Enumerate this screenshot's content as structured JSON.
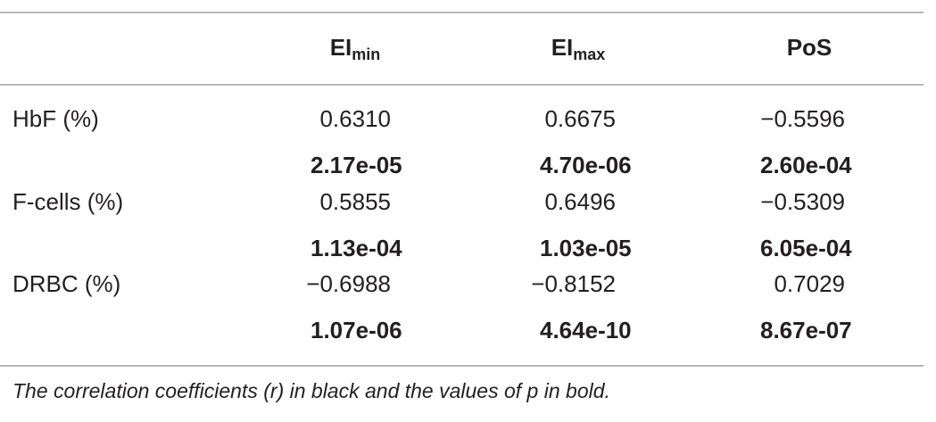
{
  "table": {
    "columns": [
      {
        "main": "EI",
        "sub": "min"
      },
      {
        "main": "EI",
        "sub": "max"
      },
      {
        "main": "PoS"
      }
    ],
    "rows": [
      {
        "label": "HbF (%)",
        "r": [
          "0.6310",
          "0.6675",
          "−0.5596"
        ],
        "p": [
          "2.17e-05",
          "4.70e-06",
          "2.60e-04"
        ]
      },
      {
        "label": "F-cells (%)",
        "r": [
          "0.5855",
          "0.6496",
          "−0.5309"
        ],
        "p": [
          "1.13e-04",
          "1.03e-05",
          "6.05e-04"
        ]
      },
      {
        "label": "DRBC (%)",
        "r": [
          "−0.6988",
          "−0.8152",
          "0.7029"
        ],
        "p": [
          "1.07e-06",
          "4.64e-10",
          "8.67e-07"
        ]
      }
    ]
  },
  "footnote": "The correlation coefficients (r) in black and the values of p in bold."
}
